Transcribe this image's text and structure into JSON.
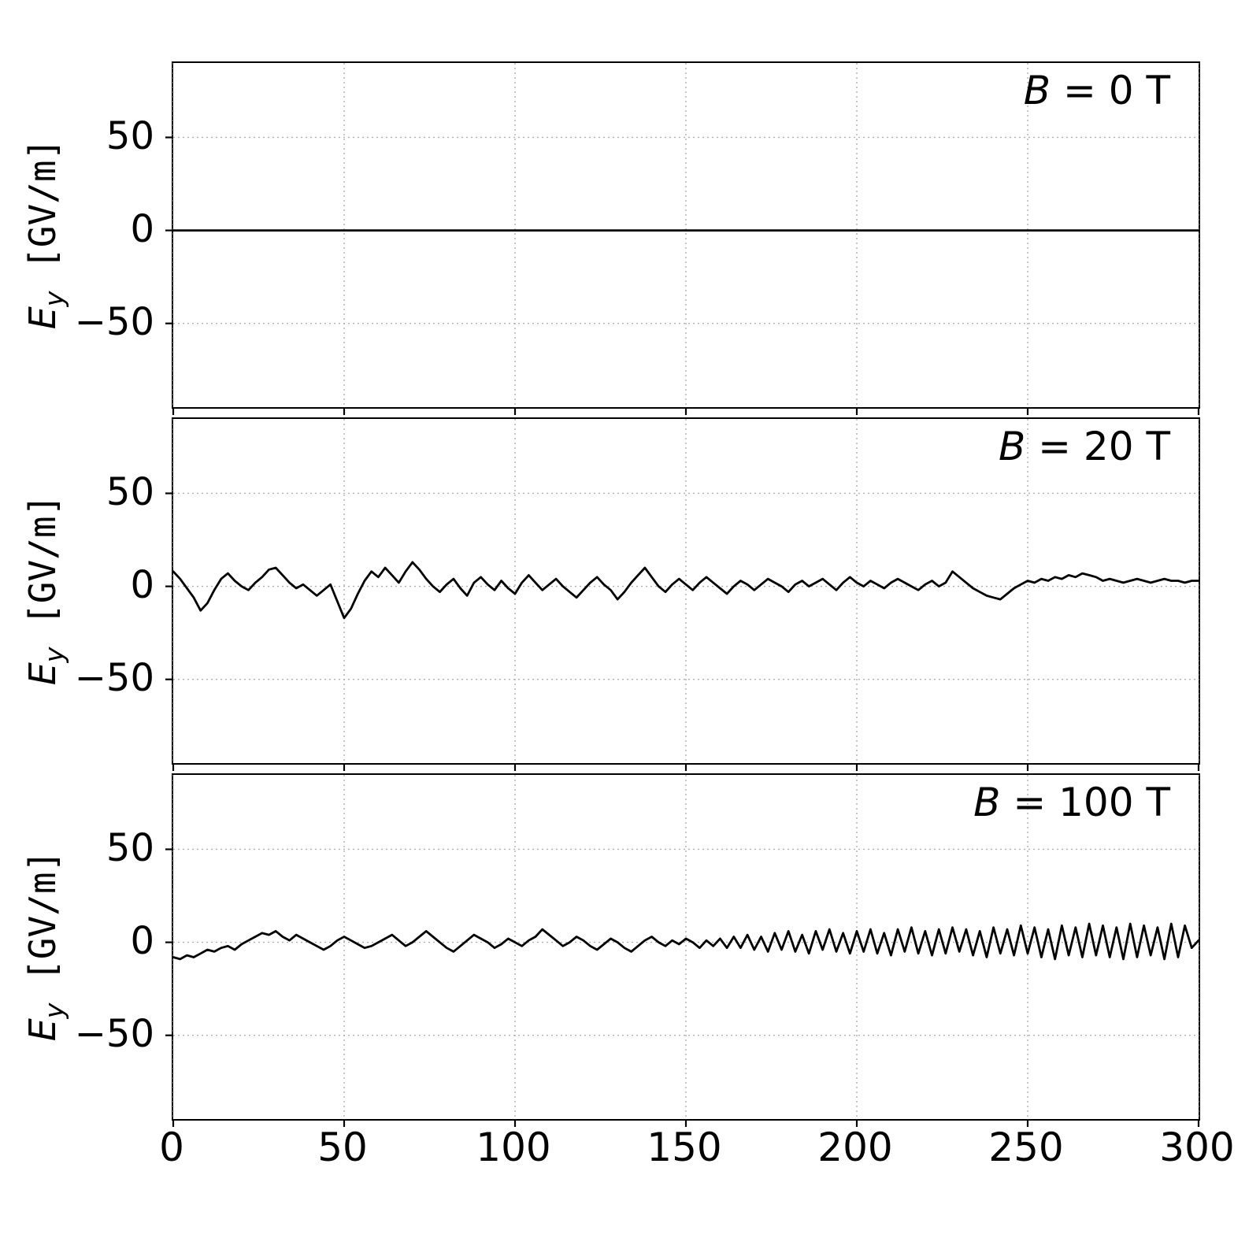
{
  "figure": {
    "background": "#ffffff",
    "axis_color": "#000000",
    "grid_color": "#b0b0b0",
    "line_color": "#000000"
  },
  "ylabel": {
    "symbol": "E",
    "subscript": "y",
    "units": " [GV/m]"
  },
  "y_ticks": [
    "50",
    "0",
    "−50"
  ],
  "x_ticks": [
    "0",
    "50",
    "100",
    "150",
    "200",
    "250",
    "300"
  ],
  "chart_data": [
    {
      "type": "line",
      "annotation": {
        "symbol": "B",
        "rest": " = 0 T"
      },
      "x_range": [
        0,
        300
      ],
      "ylim": [
        -95,
        90
      ],
      "x_tick_values": [
        0,
        50,
        100,
        150,
        200,
        250,
        300
      ],
      "y_tick_values": [
        50,
        0,
        -50
      ],
      "grid": true,
      "legend": "none",
      "values": [
        0,
        0
      ]
    },
    {
      "type": "line",
      "annotation": {
        "symbol": "B",
        "rest": " = 20 T"
      },
      "x_range": [
        0,
        300
      ],
      "ylim": [
        -95,
        90
      ],
      "x_tick_values": [
        0,
        50,
        100,
        150,
        200,
        250,
        300
      ],
      "y_tick_values": [
        50,
        0,
        -50
      ],
      "grid": true,
      "legend": "none",
      "values": [
        8,
        4,
        -1,
        -6,
        -13,
        -9,
        -2,
        4,
        7,
        3,
        0,
        -2,
        2,
        5,
        9,
        10,
        6,
        2,
        -1,
        1,
        -2,
        -5,
        -2,
        1,
        -8,
        -17,
        -12,
        -4,
        3,
        8,
        5,
        10,
        6,
        2,
        8,
        13,
        9,
        4,
        0,
        -3,
        1,
        4,
        -1,
        -5,
        2,
        5,
        1,
        -2,
        3,
        -1,
        -4,
        2,
        6,
        2,
        -2,
        1,
        4,
        0,
        -3,
        -6,
        -2,
        2,
        5,
        1,
        -2,
        -7,
        -3,
        2,
        6,
        10,
        5,
        0,
        -3,
        1,
        4,
        1,
        -2,
        2,
        5,
        2,
        -1,
        -4,
        0,
        3,
        1,
        -2,
        1,
        4,
        2,
        0,
        -3,
        1,
        3,
        0,
        2,
        4,
        1,
        -2,
        2,
        5,
        2,
        0,
        3,
        1,
        -1,
        2,
        4,
        2,
        0,
        -2,
        1,
        3,
        0,
        2,
        8,
        5,
        2,
        -1,
        -3,
        -5,
        -6,
        -7,
        -4,
        -1,
        1,
        3,
        2,
        4,
        3,
        5,
        4,
        6,
        5,
        7,
        6,
        5,
        3,
        4,
        3,
        2,
        3,
        4,
        3,
        2,
        3,
        4,
        3,
        3,
        2,
        3,
        3
      ]
    },
    {
      "type": "line",
      "annotation": {
        "symbol": "B",
        "rest": " = 100 T"
      },
      "x_range": [
        0,
        300
      ],
      "ylim": [
        -95,
        90
      ],
      "x_tick_values": [
        0,
        50,
        100,
        150,
        200,
        250,
        300
      ],
      "y_tick_values": [
        50,
        0,
        -50
      ],
      "grid": true,
      "legend": "none",
      "values": [
        -8,
        -9,
        -7,
        -8,
        -6,
        -4,
        -5,
        -3,
        -2,
        -4,
        -1,
        1,
        3,
        5,
        4,
        6,
        3,
        1,
        4,
        2,
        0,
        -2,
        -4,
        -2,
        1,
        3,
        1,
        -1,
        -3,
        -2,
        0,
        2,
        4,
        1,
        -2,
        0,
        3,
        6,
        3,
        0,
        -3,
        -5,
        -2,
        1,
        4,
        2,
        0,
        -3,
        -1,
        2,
        0,
        -2,
        1,
        3,
        7,
        4,
        1,
        -2,
        0,
        3,
        1,
        -2,
        -4,
        -1,
        2,
        0,
        -3,
        -5,
        -2,
        1,
        3,
        0,
        -2,
        1,
        -1,
        2,
        0,
        -3,
        1,
        -2,
        2,
        -3,
        3,
        -3,
        4,
        -4,
        3,
        -5,
        5,
        -4,
        6,
        -5,
        4,
        -6,
        6,
        -4,
        7,
        -5,
        5,
        -6,
        6,
        -5,
        7,
        -6,
        5,
        -7,
        7,
        -5,
        8,
        -6,
        6,
        -7,
        7,
        -6,
        8,
        -5,
        7,
        -7,
        6,
        -8,
        8,
        -6,
        7,
        -7,
        9,
        -6,
        8,
        -8,
        7,
        -9,
        9,
        -7,
        8,
        -8,
        10,
        -7,
        9,
        -8,
        8,
        -9,
        10,
        -8,
        9,
        -7,
        8,
        -9,
        10,
        -8,
        9,
        -3,
        1
      ]
    }
  ]
}
